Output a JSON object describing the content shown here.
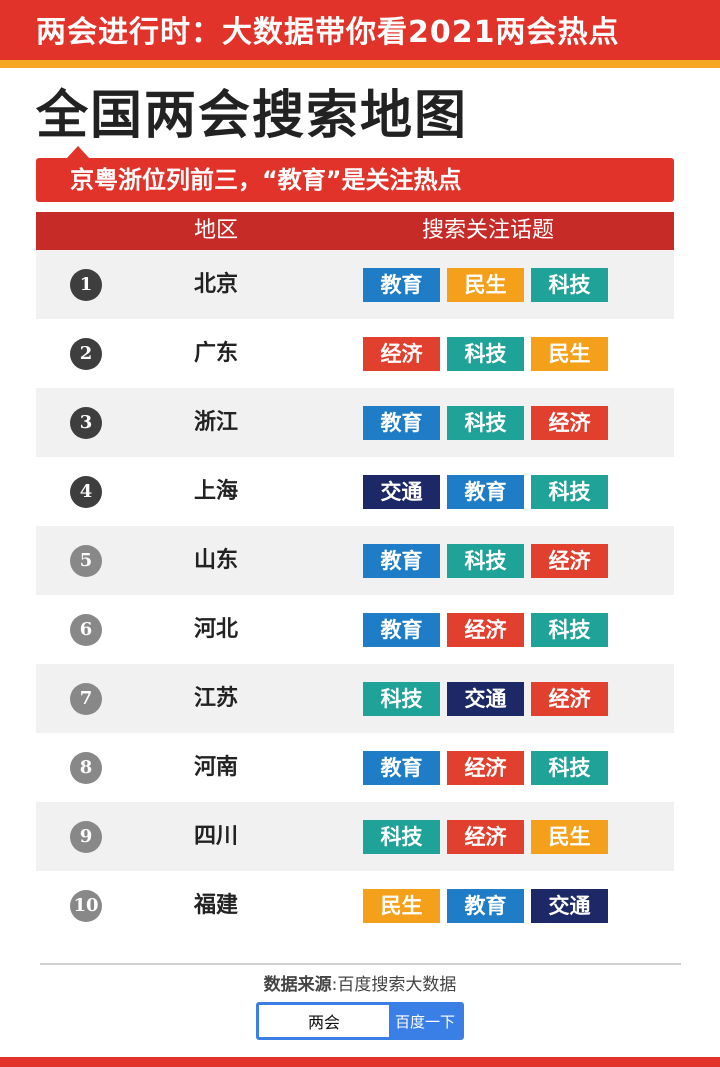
{
  "banner": {
    "title": "两会进行时：大数据带你看2021两会热点"
  },
  "main_title": "全国两会搜索地图",
  "subtitle": "京粤浙位列前三，“教育”是关注热点",
  "table": {
    "header_region": "地区",
    "header_topics": "搜索关注话题",
    "rows": [
      {
        "rank": "1",
        "region": "北京",
        "tags": [
          "教育",
          "民生",
          "科技"
        ]
      },
      {
        "rank": "2",
        "region": "广东",
        "tags": [
          "经济",
          "科技",
          "民生"
        ]
      },
      {
        "rank": "3",
        "region": "浙江",
        "tags": [
          "教育",
          "科技",
          "经济"
        ]
      },
      {
        "rank": "4",
        "region": "上海",
        "tags": [
          "交通",
          "教育",
          "科技"
        ]
      },
      {
        "rank": "5",
        "region": "山东",
        "tags": [
          "教育",
          "科技",
          "经济"
        ]
      },
      {
        "rank": "6",
        "region": "河北",
        "tags": [
          "教育",
          "经济",
          "科技"
        ]
      },
      {
        "rank": "7",
        "region": "江苏",
        "tags": [
          "科技",
          "交通",
          "经济"
        ]
      },
      {
        "rank": "8",
        "region": "河南",
        "tags": [
          "教育",
          "经济",
          "科技"
        ]
      },
      {
        "rank": "9",
        "region": "四川",
        "tags": [
          "科技",
          "经济",
          "民生"
        ]
      },
      {
        "rank": "10",
        "region": "福建",
        "tags": [
          "民生",
          "教育",
          "交通"
        ]
      }
    ]
  },
  "tag_colors": {
    "教育": "#1f7cc7",
    "民生": "#f5a01a",
    "科技": "#1fa398",
    "经济": "#e2402e",
    "交通": "#1d2866"
  },
  "source": {
    "label": "数据来源",
    "value": "百度搜索大数据"
  },
  "search": {
    "value": "两会",
    "button": "百度一下"
  }
}
